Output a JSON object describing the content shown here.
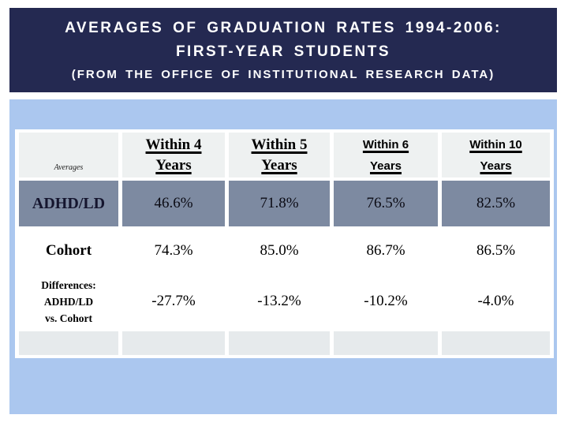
{
  "slide": {
    "title_line1": "AVERAGES OF GRADUATION RATES 1994-2006:",
    "title_line2": "FIRST-YEAR STUDENTS",
    "subtitle": "(FROM THE OFFICE OF INSTITUTIONAL RESEARCH DATA)"
  },
  "table": {
    "corner_label": "Averages",
    "columns": [
      {
        "label": "Within 4\nYears"
      },
      {
        "label": "Within 5\nYears"
      },
      {
        "label": "Within 6\nYears"
      },
      {
        "label": "Within 10\nYears"
      }
    ],
    "rows": [
      {
        "label": "ADHD/LD",
        "values": [
          "46.6%",
          "71.8%",
          "76.5%",
          "82.5%"
        ]
      },
      {
        "label": "Cohort",
        "values": [
          "74.3%",
          "85.0%",
          "86.7%",
          "86.5%"
        ]
      },
      {
        "label": "Differences:\nADHD/LD\nvs. Cohort",
        "values": [
          "-27.7%",
          "-13.2%",
          "-10.2%",
          "-4.0%"
        ]
      }
    ]
  },
  "chart_data": {
    "type": "table",
    "title": "Averages of Graduation Rates 1994-2006: First-Year Students",
    "categories": [
      "Within 4 Years",
      "Within 5 Years",
      "Within 6 Years",
      "Within 10 Years"
    ],
    "series": [
      {
        "name": "ADHD/LD",
        "values": [
          46.6,
          71.8,
          76.5,
          82.5
        ]
      },
      {
        "name": "Cohort",
        "values": [
          74.3,
          85.0,
          86.7,
          86.5
        ]
      },
      {
        "name": "Differences: ADHD/LD vs. Cohort",
        "values": [
          -27.7,
          -13.2,
          -10.2,
          -4.0
        ]
      }
    ],
    "unit": "%"
  },
  "colors": {
    "title_background": "#242951",
    "title_text": "#ffffff",
    "panel_background": "#abc7ef",
    "header_cell_background": "#eef1f1",
    "adhd_row_background": "#7d8aa1",
    "white_row_background": "#ffffff",
    "footer_row_background": "#e6eaec",
    "table_text": "#000000"
  }
}
